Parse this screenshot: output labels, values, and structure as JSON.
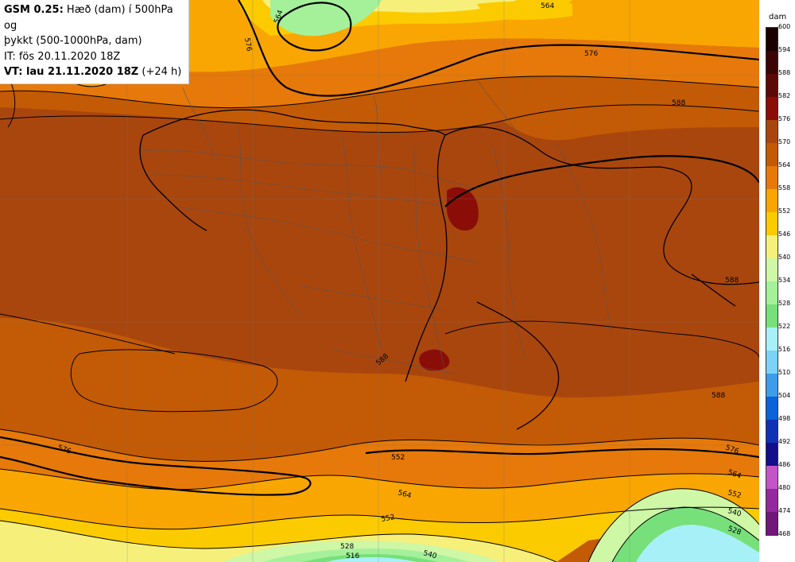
{
  "header": {
    "model": "GSM 0.25:",
    "description_line1": "Hæð (dam) í 500hPa og",
    "description_line2": "þykkt (500-1000hPa, dam)",
    "init_time": "IT: fös 20.11.2020 18Z",
    "valid_time_label": "VT: lau 21.11.2020 18Z",
    "valid_time_offset": "(+24 h)"
  },
  "legend": {
    "unit": "dam",
    "levels": [
      {
        "value": "600",
        "color": "#1a0000"
      },
      {
        "value": "594",
        "color": "#3a0505"
      },
      {
        "value": "588",
        "color": "#5c0a08"
      },
      {
        "value": "582",
        "color": "#8a0d08"
      },
      {
        "value": "576",
        "color": "#a9460e"
      },
      {
        "value": "570",
        "color": "#c35a05"
      },
      {
        "value": "564",
        "color": "#e6790a"
      },
      {
        "value": "558",
        "color": "#f9a602"
      },
      {
        "value": "552",
        "color": "#fbcb00"
      },
      {
        "value": "546",
        "color": "#f6f07a"
      },
      {
        "value": "540",
        "color": "#cef7a6"
      },
      {
        "value": "534",
        "color": "#a4f19a"
      },
      {
        "value": "528",
        "color": "#77e07a"
      },
      {
        "value": "522",
        "color": "#a8f0f7"
      },
      {
        "value": "516",
        "color": "#7cd3f7"
      },
      {
        "value": "510",
        "color": "#3d9de8"
      },
      {
        "value": "504",
        "color": "#0c62d8"
      },
      {
        "value": "498",
        "color": "#1131b4"
      },
      {
        "value": "492",
        "color": "#130e8a"
      },
      {
        "value": "486",
        "color": "#c455c9"
      },
      {
        "value": "480",
        "color": "#93299c"
      },
      {
        "value": "474",
        "color": "#701779"
      },
      {
        "value": "468",
        "color": "#4a0a55"
      }
    ]
  },
  "contour_labels": [
    "564",
    "576",
    "588",
    "576",
    "564",
    "576",
    "552",
    "564",
    "552",
    "540",
    "528",
    "516",
    "588",
    "576",
    "564",
    "552",
    "540",
    "528",
    "588",
    "588"
  ]
}
